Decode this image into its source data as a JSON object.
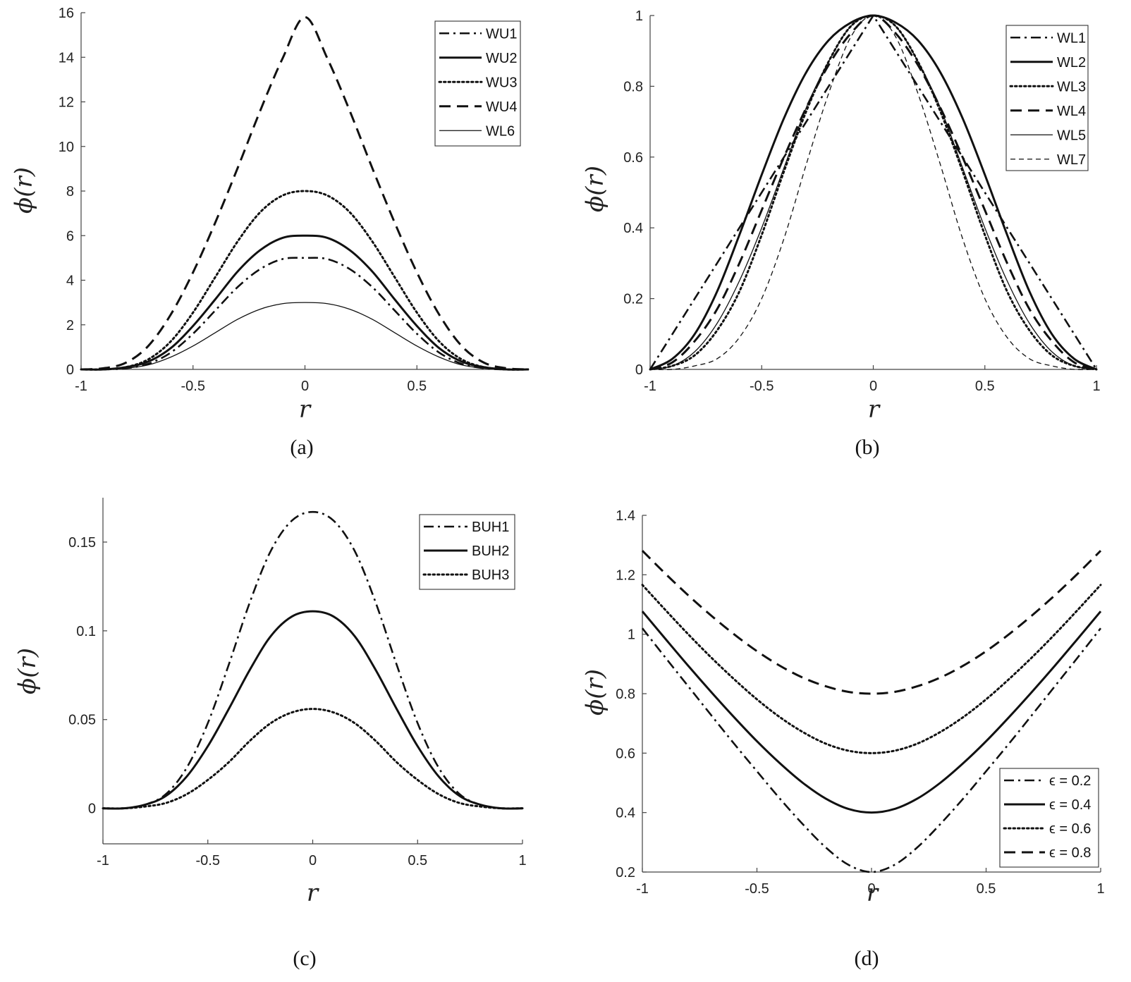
{
  "figure": {
    "panels": [
      {
        "id": "a",
        "caption": "(a)"
      },
      {
        "id": "b",
        "caption": "(b)"
      },
      {
        "id": "c",
        "caption": "(c)"
      },
      {
        "id": "d",
        "caption": "(d)"
      }
    ]
  },
  "chart_data": [
    {
      "id": "a",
      "type": "line",
      "caption": "(a)",
      "xlabel": "r",
      "ylabel": "ϕ(r)",
      "xlim": [
        -1,
        1
      ],
      "ylim": [
        0,
        16
      ],
      "xticks": [
        -1,
        -0.5,
        0,
        0.5
      ],
      "xtick_labels": [
        "-1",
        "-0.5",
        "0",
        "0.5"
      ],
      "yticks": [
        0,
        2,
        4,
        6,
        8,
        10,
        12,
        14,
        16
      ],
      "ytick_labels": [
        "0",
        "2",
        "4",
        "6",
        "8",
        "10",
        "12",
        "14",
        "16"
      ],
      "legend_position": "top-right",
      "x": [
        -1,
        -0.9,
        -0.8,
        -0.7,
        -0.6,
        -0.5,
        -0.4,
        -0.3,
        -0.2,
        -0.1,
        0,
        0.1,
        0.2,
        0.3,
        0.4,
        0.5,
        0.6,
        0.7,
        0.8,
        0.9,
        1
      ],
      "series": [
        {
          "name": "WU1",
          "style": "dashdot",
          "width": 2.6,
          "values": [
            0,
            0,
            0.05,
            0.25,
            0.75,
            1.6,
            2.65,
            3.7,
            4.5,
            4.95,
            5,
            4.95,
            4.5,
            3.7,
            2.65,
            1.6,
            0.75,
            0.25,
            0.05,
            0,
            0
          ]
        },
        {
          "name": "WU2",
          "style": "solid",
          "width": 3,
          "values": [
            0,
            0,
            0.1,
            0.35,
            0.95,
            1.95,
            3.15,
            4.4,
            5.35,
            5.9,
            6,
            5.9,
            5.35,
            4.4,
            3.15,
            1.95,
            0.95,
            0.35,
            0.1,
            0,
            0
          ]
        },
        {
          "name": "WU3",
          "style": "dotted",
          "width": 3,
          "values": [
            0,
            0,
            0.1,
            0.45,
            1.25,
            2.55,
            4.15,
            5.75,
            7.05,
            7.8,
            8,
            7.8,
            7.05,
            5.75,
            4.15,
            2.55,
            1.25,
            0.45,
            0.1,
            0,
            0
          ]
        },
        {
          "name": "WU4",
          "style": "dashed",
          "width": 3,
          "values": [
            0,
            0.05,
            0.3,
            1.05,
            2.45,
            4.35,
            6.6,
            9.05,
            11.6,
            13.95,
            15.8,
            13.95,
            11.6,
            9.05,
            6.6,
            4.35,
            2.45,
            1.05,
            0.3,
            0.05,
            0
          ]
        },
        {
          "name": "WL6",
          "style": "solid",
          "width": 1.3,
          "values": [
            0,
            0,
            0.05,
            0.2,
            0.55,
            1.05,
            1.65,
            2.25,
            2.7,
            2.95,
            3,
            2.95,
            2.7,
            2.25,
            1.65,
            1.05,
            0.55,
            0.2,
            0.05,
            0,
            0
          ]
        }
      ]
    },
    {
      "id": "b",
      "type": "line",
      "caption": "(b)",
      "xlabel": "r",
      "ylabel": "ϕ(r)",
      "xlim": [
        -1,
        1
      ],
      "ylim": [
        0,
        1
      ],
      "xticks": [
        -1,
        -0.5,
        0,
        0.5,
        1
      ],
      "xtick_labels": [
        "-1",
        "-0.5",
        "0",
        "0.5",
        "1"
      ],
      "yticks": [
        0,
        0.2,
        0.4,
        0.6,
        0.8,
        1
      ],
      "ytick_labels": [
        "0",
        "0.2",
        "0.4",
        "0.6",
        "0.8",
        "1"
      ],
      "legend_position": "top-right",
      "x": [
        -1,
        -0.9,
        -0.8,
        -0.7,
        -0.6,
        -0.5,
        -0.4,
        -0.3,
        -0.2,
        -0.1,
        0,
        0.1,
        0.2,
        0.3,
        0.4,
        0.5,
        0.6,
        0.7,
        0.8,
        0.9,
        1
      ],
      "series": [
        {
          "name": "WL1",
          "style": "dashdot",
          "width": 2.6,
          "values": [
            0,
            0.1,
            0.2,
            0.3,
            0.4,
            0.5,
            0.6,
            0.7,
            0.8,
            0.9,
            1,
            0.9,
            0.8,
            0.7,
            0.6,
            0.5,
            0.4,
            0.3,
            0.2,
            0.1,
            0
          ]
        },
        {
          "name": "WL2",
          "style": "solid",
          "width": 3,
          "values": [
            0,
            0.03,
            0.1,
            0.22,
            0.38,
            0.55,
            0.71,
            0.84,
            0.93,
            0.98,
            1,
            0.98,
            0.93,
            0.84,
            0.71,
            0.55,
            0.38,
            0.22,
            0.1,
            0.03,
            0
          ]
        },
        {
          "name": "WL3",
          "style": "dotted",
          "width": 3,
          "values": [
            0,
            0.01,
            0.04,
            0.11,
            0.22,
            0.38,
            0.56,
            0.73,
            0.87,
            0.97,
            1,
            0.97,
            0.87,
            0.73,
            0.56,
            0.38,
            0.22,
            0.11,
            0.04,
            0.01,
            0
          ]
        },
        {
          "name": "WL4",
          "style": "dashed",
          "width": 3,
          "values": [
            0,
            0.02,
            0.08,
            0.17,
            0.3,
            0.45,
            0.6,
            0.74,
            0.86,
            0.95,
            1,
            0.95,
            0.86,
            0.74,
            0.6,
            0.45,
            0.3,
            0.17,
            0.08,
            0.02,
            0
          ]
        },
        {
          "name": "WL5",
          "style": "solid",
          "width": 1.3,
          "values": [
            0,
            0.01,
            0.05,
            0.13,
            0.25,
            0.4,
            0.57,
            0.74,
            0.87,
            0.97,
            1,
            0.97,
            0.87,
            0.74,
            0.57,
            0.4,
            0.25,
            0.13,
            0.05,
            0.01,
            0
          ]
        },
        {
          "name": "WL7",
          "style": "thindash",
          "width": 1.3,
          "values": [
            0,
            0,
            0.01,
            0.03,
            0.09,
            0.2,
            0.37,
            0.58,
            0.78,
            0.94,
            1,
            0.94,
            0.78,
            0.58,
            0.37,
            0.2,
            0.09,
            0.03,
            0.01,
            0,
            0
          ]
        }
      ]
    },
    {
      "id": "c",
      "type": "line",
      "caption": "(c)",
      "xlabel": "r",
      "ylabel": "ϕ(r)",
      "xlim": [
        -1,
        1
      ],
      "ylim": [
        -0.02,
        0.175
      ],
      "xticks": [
        -1,
        -0.5,
        0,
        0.5,
        1
      ],
      "xtick_labels": [
        "-1",
        "-0.5",
        "0",
        "0.5",
        "1"
      ],
      "yticks": [
        0,
        0.05,
        0.1,
        0.15
      ],
      "ytick_labels": [
        "0",
        "0.05",
        "0.1",
        "0.15"
      ],
      "legend_position": "top-right",
      "x": [
        -1,
        -0.9,
        -0.8,
        -0.7,
        -0.6,
        -0.5,
        -0.4,
        -0.3,
        -0.2,
        -0.1,
        0,
        0.1,
        0.2,
        0.3,
        0.4,
        0.5,
        0.6,
        0.7,
        0.8,
        0.9,
        1
      ],
      "series": [
        {
          "name": "BUH1",
          "style": "dashdot",
          "width": 2.6,
          "values": [
            0,
            0,
            0.002,
            0.008,
            0.023,
            0.048,
            0.081,
            0.116,
            0.145,
            0.162,
            0.167,
            0.162,
            0.145,
            0.116,
            0.081,
            0.048,
            0.023,
            0.008,
            0.002,
            0,
            0
          ]
        },
        {
          "name": "BUH2",
          "style": "solid",
          "width": 3,
          "values": [
            0,
            0,
            0.002,
            0.007,
            0.018,
            0.035,
            0.056,
            0.078,
            0.097,
            0.108,
            0.111,
            0.108,
            0.097,
            0.078,
            0.056,
            0.035,
            0.018,
            0.007,
            0.002,
            0,
            0
          ]
        },
        {
          "name": "BUH3",
          "style": "dotted",
          "width": 3,
          "values": [
            0,
            0,
            0.001,
            0.003,
            0.008,
            0.016,
            0.026,
            0.038,
            0.048,
            0.054,
            0.056,
            0.054,
            0.048,
            0.038,
            0.026,
            0.016,
            0.008,
            0.003,
            0.001,
            0,
            0
          ]
        }
      ]
    },
    {
      "id": "d",
      "type": "line",
      "caption": "(d)",
      "xlabel": "r",
      "ylabel": "ϕ(r)",
      "xlim": [
        -1,
        1
      ],
      "ylim": [
        0.2,
        1.4
      ],
      "xticks": [
        -1,
        -0.5,
        0,
        0.5,
        1
      ],
      "xtick_labels": [
        "-1",
        "-0.5",
        "0",
        "0.5",
        "1"
      ],
      "yticks": [
        0.2,
        0.4,
        0.6,
        0.8,
        1,
        1.2,
        1.4
      ],
      "ytick_labels": [
        "0.2",
        "0.4",
        "0.6",
        "0.8",
        "1",
        "1.2",
        "1.4"
      ],
      "legend_position": "bottom-right",
      "x": [
        -1,
        -0.9,
        -0.8,
        -0.7,
        -0.6,
        -0.5,
        -0.4,
        -0.3,
        -0.2,
        -0.1,
        0,
        0.1,
        0.2,
        0.3,
        0.4,
        0.5,
        0.6,
        0.7,
        0.8,
        0.9,
        1
      ],
      "series": [
        {
          "name": "ϵ = 0.2",
          "style": "dashdot",
          "width": 2.6,
          "values": [
            1.02,
            0.922,
            0.825,
            0.728,
            0.632,
            0.539,
            0.447,
            0.361,
            0.283,
            0.224,
            0.2,
            0.224,
            0.283,
            0.361,
            0.447,
            0.539,
            0.632,
            0.728,
            0.825,
            0.922,
            1.02
          ]
        },
        {
          "name": "ϵ = 0.4",
          "style": "solid",
          "width": 3,
          "values": [
            1.077,
            0.985,
            0.894,
            0.806,
            0.721,
            0.64,
            0.566,
            0.5,
            0.447,
            0.412,
            0.4,
            0.412,
            0.447,
            0.5,
            0.566,
            0.64,
            0.721,
            0.806,
            0.894,
            0.985,
            1.077
          ]
        },
        {
          "name": "ϵ = 0.6",
          "style": "dotted",
          "width": 3,
          "values": [
            1.166,
            1.082,
            1.0,
            0.922,
            0.849,
            0.781,
            0.721,
            0.671,
            0.632,
            0.608,
            0.6,
            0.608,
            0.632,
            0.671,
            0.721,
            0.781,
            0.849,
            0.922,
            1.0,
            1.082,
            1.166
          ]
        },
        {
          "name": "ϵ = 0.8",
          "style": "dashed",
          "width": 3,
          "values": [
            1.281,
            1.204,
            1.131,
            1.063,
            1.0,
            0.943,
            0.894,
            0.854,
            0.825,
            0.806,
            0.8,
            0.806,
            0.825,
            0.854,
            0.894,
            0.943,
            1.0,
            1.063,
            1.131,
            1.204,
            1.281
          ]
        }
      ]
    }
  ]
}
